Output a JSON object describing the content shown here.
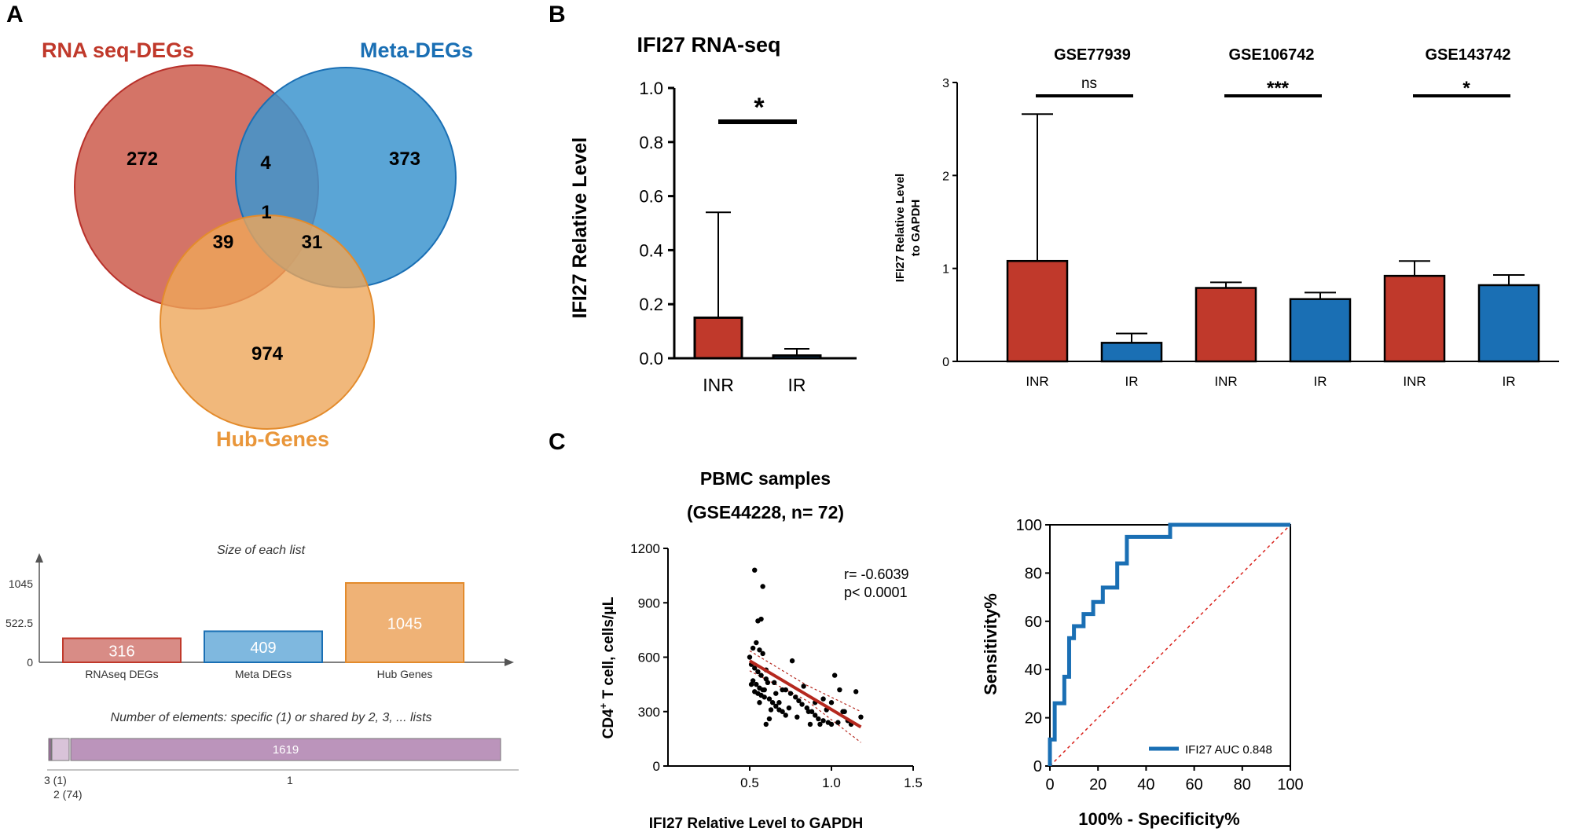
{
  "panels": {
    "a": "A",
    "b": "B",
    "c": "C"
  },
  "colors": {
    "red": "#c0392b",
    "blue": "#1a6fb4",
    "orange": "#e9963a",
    "venn_red_fill": "#cf6557",
    "venn_blue_fill": "#3d95cf",
    "venn_orange_fill": "#eda65a",
    "purple": "#bb94bb",
    "regression": "#b5281e"
  },
  "venn": {
    "sets": [
      {
        "name": "RNA seq-DEGs"
      },
      {
        "name": "Meta-DEGs"
      },
      {
        "name": "Hub-Genes"
      }
    ],
    "regions": {
      "rna_only": "272",
      "meta_only": "373",
      "hub_only": "974",
      "rna_meta": "4",
      "rna_hub": "39",
      "meta_hub": "31",
      "all": "1"
    }
  },
  "list_sizes": {
    "title": "Size of each list",
    "ticks": [
      "1045",
      "522.5",
      "0"
    ],
    "categories": [
      "RNAseq DEGs",
      "Meta DEGs",
      "Hub Genes"
    ],
    "values": [
      316,
      409,
      1045
    ],
    "value_labels": [
      "316",
      "409",
      "1045"
    ],
    "ymax": 1045
  },
  "shared_elements": {
    "title": "Number of elements: specific (1) or shared by 2, 3, ... lists",
    "segments": [
      {
        "label": "3 (1)",
        "count": 1
      },
      {
        "label": "2 (74)",
        "count": 74
      },
      {
        "label": "1",
        "count": 1619,
        "value_label": "1619"
      }
    ]
  },
  "chart_data": [
    {
      "type": "bar",
      "title": "IFI27 RNA-seq",
      "ylabel": "IFI27 Relative Level",
      "ylim": [
        0,
        1.0
      ],
      "yticks": [
        "0.0",
        "0.2",
        "0.4",
        "0.6",
        "0.8",
        "1.0"
      ],
      "categories": [
        "INR",
        "IR"
      ],
      "values": [
        0.15,
        0.01
      ],
      "error_upper": [
        0.54,
        0.035
      ],
      "significance": "*"
    },
    {
      "type": "bar",
      "ylabel_lines": [
        "IFI27 Relative Level",
        "to GAPDH"
      ],
      "ylim": [
        0,
        3
      ],
      "yticks": [
        "0",
        "1",
        "2",
        "3"
      ],
      "groups": [
        {
          "name": "GSE77939",
          "significance": "ns",
          "categories": [
            "INR",
            "IR"
          ],
          "values": [
            1.08,
            0.2
          ],
          "error_upper": [
            2.66,
            0.3
          ]
        },
        {
          "name": "GSE106742",
          "significance": "***",
          "categories": [
            "INR",
            "IR"
          ],
          "values": [
            0.79,
            0.67
          ],
          "error_upper": [
            0.85,
            0.74
          ]
        },
        {
          "name": "GSE143742",
          "significance": "*",
          "categories": [
            "INR",
            "IR"
          ],
          "values": [
            0.92,
            0.82
          ],
          "error_upper": [
            1.08,
            0.93
          ]
        }
      ]
    },
    {
      "type": "scatter",
      "title_lines": [
        "PBMC samples",
        "(GSE44228, n= 72)"
      ],
      "xlabel": "IFI27 Relative Level to GAPDH",
      "ylabel_main": "CD4",
      "ylabel_sup": "+",
      "ylabel_rest": " T cell, cells/μL",
      "xlim": [
        0,
        1.5
      ],
      "ylim": [
        0,
        1200
      ],
      "xticks": [
        "0.5",
        "1.0",
        "1.5"
      ],
      "yticks": [
        "0",
        "300",
        "600",
        "900",
        "1200"
      ],
      "stats": [
        "r= -0.6039",
        "p< 0.0001"
      ],
      "regression": {
        "x": [
          0.5,
          1.18
        ],
        "y": [
          580,
          215
        ]
      },
      "ci_upper": {
        "x": [
          0.5,
          0.85,
          1.18
        ],
        "y": [
          635,
          445,
          300
        ]
      },
      "ci_lower": {
        "x": [
          0.5,
          0.85,
          1.18
        ],
        "y": [
          525,
          360,
          130
        ]
      },
      "points": [
        [
          0.53,
          1080
        ],
        [
          0.58,
          990
        ],
        [
          0.57,
          810
        ],
        [
          0.55,
          800
        ],
        [
          0.52,
          650
        ],
        [
          0.54,
          680
        ],
        [
          0.56,
          640
        ],
        [
          0.58,
          620
        ],
        [
          0.5,
          600
        ],
        [
          0.51,
          560
        ],
        [
          0.53,
          540
        ],
        [
          0.55,
          520
        ],
        [
          0.57,
          500
        ],
        [
          0.6,
          480
        ],
        [
          0.52,
          470
        ],
        [
          0.54,
          450
        ],
        [
          0.56,
          430
        ],
        [
          0.58,
          420
        ],
        [
          0.53,
          410
        ],
        [
          0.55,
          400
        ],
        [
          0.57,
          390
        ],
        [
          0.59,
          380
        ],
        [
          0.62,
          370
        ],
        [
          0.64,
          350
        ],
        [
          0.66,
          330
        ],
        [
          0.68,
          310
        ],
        [
          0.7,
          300
        ],
        [
          0.72,
          280
        ],
        [
          0.65,
          460
        ],
        [
          0.7,
          420
        ],
        [
          0.75,
          400
        ],
        [
          0.78,
          380
        ],
        [
          0.8,
          360
        ],
        [
          0.82,
          340
        ],
        [
          0.85,
          320
        ],
        [
          0.88,
          300
        ],
        [
          0.9,
          280
        ],
        [
          0.92,
          260
        ],
        [
          0.95,
          250
        ],
        [
          0.98,
          240
        ],
        [
          1.0,
          230
        ],
        [
          1.02,
          500
        ],
        [
          1.05,
          420
        ],
        [
          1.08,
          300
        ],
        [
          1.1,
          250
        ],
        [
          1.12,
          230
        ],
        [
          1.15,
          410
        ],
        [
          1.18,
          270
        ],
        [
          0.76,
          580
        ],
        [
          0.62,
          260
        ],
        [
          0.6,
          230
        ],
        [
          0.63,
          310
        ],
        [
          0.86,
          300
        ],
        [
          0.9,
          350
        ],
        [
          0.95,
          370
        ],
        [
          1.0,
          350
        ],
        [
          0.72,
          420
        ],
        [
          0.68,
          350
        ],
        [
          0.74,
          320
        ],
        [
          0.83,
          440
        ],
        [
          0.93,
          230
        ],
        [
          1.04,
          240
        ],
        [
          0.56,
          350
        ],
        [
          0.59,
          420
        ],
        [
          0.61,
          460
        ],
        [
          0.66,
          400
        ],
        [
          0.79,
          270
        ],
        [
          0.87,
          230
        ],
        [
          1.07,
          300
        ],
        [
          0.51,
          450
        ],
        [
          0.6,
          530
        ],
        [
          0.97,
          310
        ]
      ]
    },
    {
      "type": "line",
      "xlabel": "100% - Specificity%",
      "ylabel": "Sensitivity%",
      "xlim": [
        0,
        100
      ],
      "ylim": [
        0,
        100
      ],
      "xticks": [
        "0",
        "20",
        "40",
        "60",
        "80",
        "100"
      ],
      "yticks": [
        "0",
        "20",
        "40",
        "60",
        "80",
        "100"
      ],
      "legend": "IFI27 AUC 0.848",
      "series": [
        {
          "name": "IFI27 AUC 0.848",
          "x": [
            0,
            0,
            2,
            2,
            6,
            6,
            8,
            8,
            10,
            10,
            14,
            14,
            18,
            18,
            22,
            22,
            28,
            28,
            32,
            32,
            50,
            50,
            100
          ],
          "y": [
            0,
            11,
            11,
            26,
            26,
            37,
            37,
            53,
            53,
            58,
            58,
            63,
            63,
            68,
            68,
            74,
            74,
            84,
            84,
            95,
            95,
            100,
            100
          ]
        }
      ],
      "reference_line": {
        "x": [
          0,
          100
        ],
        "y": [
          0,
          100
        ]
      }
    }
  ]
}
